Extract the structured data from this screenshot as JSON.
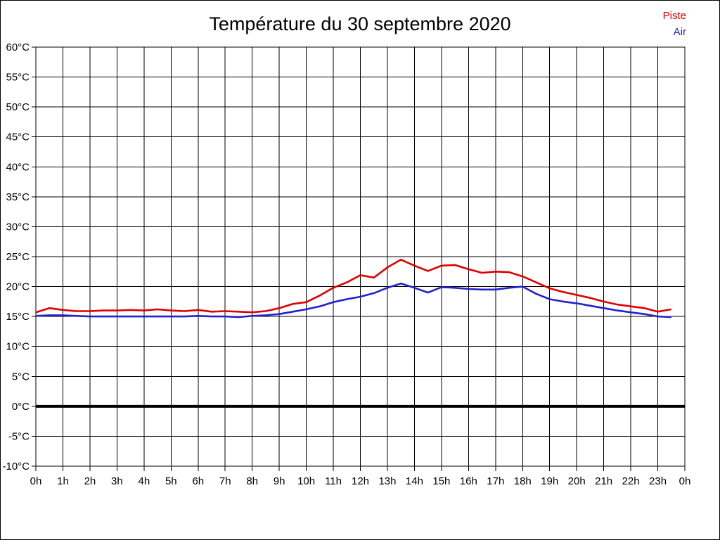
{
  "page": {
    "background": "#ffffff",
    "border_color": "#000000"
  },
  "header": {
    "title": "Température du 30 septembre 2020"
  },
  "legend": {
    "position": "top-right",
    "items": [
      {
        "label": "Piste",
        "color": "#dd0000"
      },
      {
        "label": "Air",
        "color": "#2222cc"
      }
    ]
  },
  "chart_data": {
    "type": "line",
    "title": "Température du 30 septembre 2020",
    "xlabel": "",
    "ylabel": "",
    "x_unit": "hours",
    "xlim": [
      0,
      24
    ],
    "ylim": [
      -10,
      60
    ],
    "y_tick_step": 5,
    "grid": true,
    "legend_position": "top-right",
    "y_tick_labels": [
      "60°C",
      "55°C",
      "50°C",
      "45°C",
      "40°C",
      "35°C",
      "30°C",
      "25°C",
      "20°C",
      "15°C",
      "10°C",
      "5°C",
      "0°C",
      "-5°C",
      "-10°C"
    ],
    "x_tick_labels": [
      "0h",
      "1h",
      "2h",
      "3h",
      "4h",
      "5h",
      "6h",
      "7h",
      "8h",
      "9h",
      "10h",
      "11h",
      "12h",
      "13h",
      "14h",
      "15h",
      "16h",
      "17h",
      "18h",
      "19h",
      "20h",
      "21h",
      "22h",
      "23h",
      "0h"
    ],
    "x": [
      0,
      0.5,
      1,
      1.5,
      2,
      2.5,
      3,
      3.5,
      4,
      4.5,
      5,
      5.5,
      6,
      6.5,
      7,
      7.5,
      8,
      8.5,
      9,
      9.5,
      10,
      10.5,
      11,
      11.5,
      12,
      12.5,
      13,
      13.5,
      14,
      14.5,
      15,
      15.5,
      16,
      16.5,
      17,
      17.5,
      18,
      18.5,
      19,
      19.5,
      20,
      20.5,
      21,
      21.5,
      22,
      22.5,
      23,
      23.5
    ],
    "series": [
      {
        "name": "Piste",
        "color": "#dd0000",
        "width": 2.6,
        "values": [
          15.7,
          16.4,
          16.1,
          15.9,
          15.9,
          16.0,
          16.0,
          16.1,
          16.0,
          16.2,
          16.0,
          15.9,
          16.1,
          15.8,
          15.9,
          15.8,
          15.7,
          15.9,
          16.4,
          17.1,
          17.4,
          18.5,
          19.8,
          20.7,
          21.9,
          21.5,
          23.2,
          24.5,
          23.5,
          22.6,
          23.5,
          23.6,
          22.9,
          22.3,
          22.5,
          22.4,
          21.7,
          20.7,
          19.7,
          19.1,
          18.6,
          18.1,
          17.5,
          17.0,
          16.7,
          16.4,
          15.8,
          16.2
        ]
      },
      {
        "name": "Air",
        "color": "#2222cc",
        "width": 2.6,
        "values": [
          15.1,
          15.2,
          15.2,
          15.1,
          15.0,
          15.0,
          15.0,
          15.0,
          15.0,
          15.0,
          15.0,
          15.0,
          15.1,
          15.0,
          15.0,
          14.9,
          15.1,
          15.2,
          15.4,
          15.8,
          16.2,
          16.7,
          17.4,
          17.9,
          18.3,
          18.9,
          19.8,
          20.5,
          19.8,
          19.0,
          19.9,
          19.8,
          19.6,
          19.5,
          19.5,
          19.8,
          20.0,
          18.8,
          17.9,
          17.5,
          17.2,
          16.8,
          16.4,
          16.0,
          15.7,
          15.4,
          15.0,
          14.9
        ]
      }
    ],
    "zero_line": {
      "value": 0,
      "color": "#000000",
      "width": 4
    },
    "grid_color": "#000000",
    "axis_color": "#000000"
  }
}
